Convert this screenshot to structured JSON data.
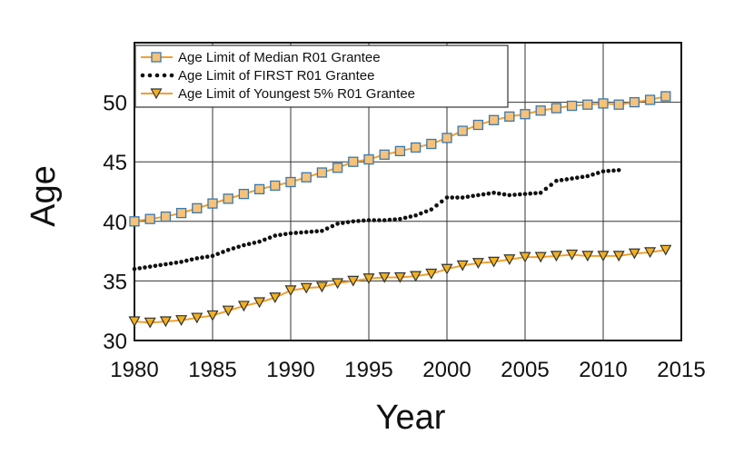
{
  "chart_data": {
    "type": "line",
    "xlabel": "Year",
    "ylabel": "Age",
    "xlim": [
      1980,
      2015
    ],
    "ylim": [
      30,
      55
    ],
    "xticks": [
      1980,
      1985,
      1990,
      1995,
      2000,
      2005,
      2010,
      2015
    ],
    "yticks": [
      30,
      35,
      40,
      45,
      50
    ],
    "grid": true,
    "legend_position": "top-left",
    "series": [
      {
        "name": "Age Limit of Median R01 Grantee",
        "style": "solid-square",
        "line_color": "#f0a030",
        "marker_fill": "#f5c27a",
        "marker_edge": "#3a78b0",
        "x": [
          1980,
          1981,
          1982,
          1983,
          1984,
          1985,
          1986,
          1987,
          1988,
          1989,
          1990,
          1991,
          1992,
          1993,
          1994,
          1995,
          1996,
          1997,
          1998,
          1999,
          2000,
          2001,
          2002,
          2003,
          2004,
          2005,
          2006,
          2007,
          2008,
          2009,
          2010,
          2011,
          2012,
          2013,
          2014
        ],
        "values": [
          40.0,
          40.2,
          40.4,
          40.7,
          41.1,
          41.5,
          41.9,
          42.3,
          42.7,
          43.0,
          43.3,
          43.7,
          44.1,
          44.5,
          45.0,
          45.2,
          45.6,
          45.9,
          46.2,
          46.5,
          47.0,
          47.6,
          48.1,
          48.5,
          48.8,
          49.0,
          49.3,
          49.5,
          49.7,
          49.8,
          49.9,
          49.8,
          50.0,
          50.2,
          50.5
        ]
      },
      {
        "name": "Age Limit of FIRST R01 Grantee",
        "style": "dotted",
        "line_color": "#111111",
        "x": [
          1980,
          1981,
          1982,
          1983,
          1984,
          1985,
          1986,
          1987,
          1988,
          1989,
          1990,
          1991,
          1992,
          1993,
          1994,
          1995,
          1996,
          1997,
          1998,
          1999,
          2000,
          2001,
          2002,
          2003,
          2004,
          2005,
          2006,
          2007,
          2008,
          2009,
          2010,
          2011
        ],
        "values": [
          36.0,
          36.2,
          36.4,
          36.6,
          36.9,
          37.1,
          37.6,
          38.0,
          38.3,
          38.8,
          39.0,
          39.1,
          39.2,
          39.8,
          40.0,
          40.1,
          40.1,
          40.2,
          40.5,
          41.0,
          42.0,
          42.0,
          42.2,
          42.4,
          42.2,
          42.3,
          42.4,
          43.4,
          43.6,
          43.8,
          44.2,
          44.3
        ]
      },
      {
        "name": "Age Limit of Youngest 5% R01 Grantee",
        "style": "solid-triangle",
        "line_color": "#f0a030",
        "marker_fill": "#f0b020",
        "marker_edge": "#333333",
        "x": [
          1980,
          1981,
          1982,
          1983,
          1984,
          1985,
          1986,
          1987,
          1988,
          1989,
          1990,
          1991,
          1992,
          1993,
          1994,
          1995,
          1996,
          1997,
          1998,
          1999,
          2000,
          2001,
          2002,
          2003,
          2004,
          2005,
          2006,
          2007,
          2008,
          2009,
          2010,
          2011,
          2012,
          2013,
          2014
        ],
        "values": [
          31.6,
          31.5,
          31.6,
          31.7,
          31.9,
          32.1,
          32.5,
          32.9,
          33.2,
          33.6,
          34.2,
          34.4,
          34.5,
          34.8,
          35.0,
          35.2,
          35.3,
          35.3,
          35.4,
          35.6,
          36.0,
          36.3,
          36.5,
          36.6,
          36.8,
          37.0,
          37.0,
          37.1,
          37.2,
          37.1,
          37.1,
          37.1,
          37.3,
          37.4,
          37.6
        ]
      }
    ]
  }
}
